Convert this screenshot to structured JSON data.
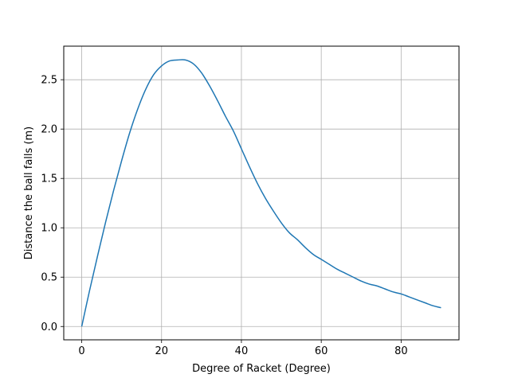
{
  "chart_data": {
    "type": "line",
    "title": "",
    "xlabel": "Degree of Racket (Degree)",
    "ylabel": "Distance the ball falls (m)",
    "xlim": [
      -4.5,
      94.5
    ],
    "ylim": [
      -0.135,
      2.84
    ],
    "xticks": [
      0,
      20,
      40,
      60,
      80
    ],
    "xtick_labels": [
      "0",
      "20",
      "40",
      "60",
      "80"
    ],
    "yticks": [
      0.0,
      0.5,
      1.0,
      1.5,
      2.0,
      2.5
    ],
    "ytick_labels": [
      "0.0",
      "0.5",
      "1.0",
      "1.5",
      "2.0",
      "2.5"
    ],
    "grid": true,
    "series": [
      {
        "color": "#1f77b4",
        "x": [
          0,
          2,
          4,
          6,
          8,
          10,
          12,
          14,
          16,
          18,
          20,
          22,
          24,
          26,
          28,
          30,
          32,
          34,
          36,
          38,
          40,
          42,
          44,
          46,
          48,
          50,
          52,
          54,
          56,
          58,
          60,
          62,
          64,
          66,
          68,
          70,
          72,
          74,
          76,
          78,
          80,
          82,
          84,
          86,
          88,
          90
        ],
        "y": [
          0.0,
          0.37,
          0.72,
          1.06,
          1.38,
          1.68,
          1.96,
          2.2,
          2.4,
          2.55,
          2.64,
          2.69,
          2.7,
          2.7,
          2.66,
          2.57,
          2.44,
          2.29,
          2.13,
          1.98,
          1.8,
          1.62,
          1.45,
          1.3,
          1.17,
          1.05,
          0.95,
          0.88,
          0.8,
          0.73,
          0.68,
          0.63,
          0.58,
          0.54,
          0.5,
          0.46,
          0.43,
          0.41,
          0.38,
          0.35,
          0.33,
          0.3,
          0.27,
          0.24,
          0.21,
          0.19
        ]
      }
    ]
  }
}
